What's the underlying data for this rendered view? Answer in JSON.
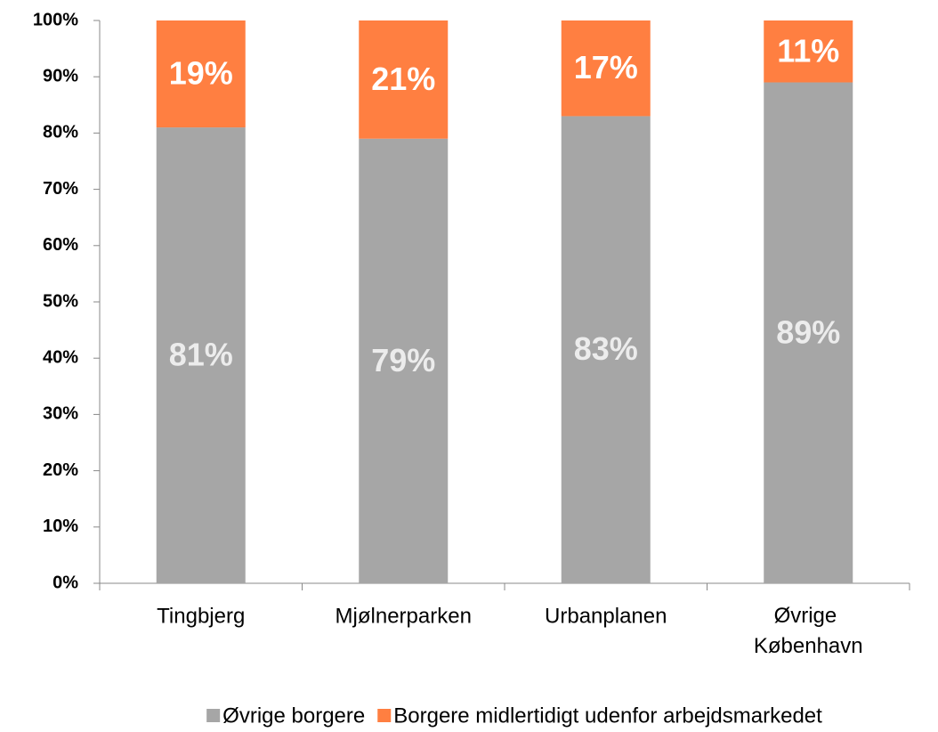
{
  "chart_data": {
    "type": "stacked_bar",
    "categories": [
      "Tingbjerg",
      "Mjølnerparken",
      "Urbanplanen",
      "Øvrige København"
    ],
    "series": [
      {
        "name": "Øvrige borgere",
        "color": "#a6a6a6",
        "values": [
          81,
          79,
          83,
          89
        ],
        "value_labels": [
          "81%",
          "79%",
          "83%",
          "89%"
        ],
        "label_color": "#ececec"
      },
      {
        "name": "Borgere midlertidigt udenfor arbejdsmarkedet",
        "color": "#ff7f41",
        "values": [
          19,
          21,
          17,
          11
        ],
        "value_labels": [
          "19%",
          "21%",
          "17%",
          "11%"
        ],
        "label_color": "#ffffff"
      }
    ],
    "ylim": [
      0,
      100
    ],
    "yticks": [
      {
        "value": 0,
        "label": "0%"
      },
      {
        "value": 10,
        "label": "10%"
      },
      {
        "value": 20,
        "label": "20%"
      },
      {
        "value": 30,
        "label": "30%"
      },
      {
        "value": 40,
        "label": "40%"
      },
      {
        "value": 50,
        "label": "50%"
      },
      {
        "value": 60,
        "label": "60%"
      },
      {
        "value": 70,
        "label": "70%"
      },
      {
        "value": 80,
        "label": "80%"
      },
      {
        "value": 90,
        "label": "90%"
      },
      {
        "value": 100,
        "label": "100%"
      }
    ],
    "grid": false,
    "legend": "bottom"
  }
}
